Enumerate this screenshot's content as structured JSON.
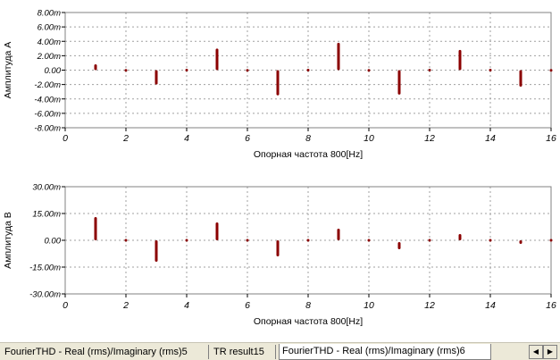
{
  "chart_data": [
    {
      "type": "scatter",
      "ylabel": "Амплитуда A",
      "xlabel": "Опорная частота 800[Hz]",
      "xlim": [
        0,
        16
      ],
      "ylim": [
        -8,
        8
      ],
      "yticks": [
        "8.00m",
        "6.00m",
        "4.00m",
        "2.00m",
        "0.00",
        "-2.00m",
        "-4.00m",
        "-6.00m",
        "-8.00m"
      ],
      "xticks": [
        "0",
        "2",
        "4",
        "6",
        "8",
        "10",
        "12",
        "14",
        "16"
      ],
      "grid": true,
      "series": [
        {
          "color": "#8b0000",
          "bars": [
            {
              "x": 1,
              "low": 0.0,
              "high": 0.8
            },
            {
              "x": 2,
              "low": -0.15,
              "high": 0.1
            },
            {
              "x": 3,
              "low": -2.0,
              "high": 0.0
            },
            {
              "x": 4,
              "low": -0.1,
              "high": 0.1
            },
            {
              "x": 5,
              "low": 0.0,
              "high": 3.0
            },
            {
              "x": 6,
              "low": -0.15,
              "high": 0.1
            },
            {
              "x": 7,
              "low": -3.5,
              "high": 0.0
            },
            {
              "x": 8,
              "low": -0.1,
              "high": 0.1
            },
            {
              "x": 9,
              "low": 0.0,
              "high": 3.8
            },
            {
              "x": 10,
              "low": -0.15,
              "high": 0.1
            },
            {
              "x": 11,
              "low": -3.4,
              "high": 0.0
            },
            {
              "x": 12,
              "low": -0.1,
              "high": 0.1
            },
            {
              "x": 13,
              "low": 0.0,
              "high": 2.8
            },
            {
              "x": 14,
              "low": -0.1,
              "high": 0.1
            },
            {
              "x": 15,
              "low": -2.3,
              "high": 0.0
            },
            {
              "x": 16,
              "low": -0.15,
              "high": 0.1
            }
          ]
        }
      ]
    },
    {
      "type": "scatter",
      "ylabel": "Амплитуда B",
      "xlabel": "Опорная частота 800[Hz]",
      "xlim": [
        0,
        16
      ],
      "ylim": [
        -30,
        30
      ],
      "yticks": [
        "30.00m",
        "15.00m",
        "0.00",
        "-15.00m",
        "-30.00m"
      ],
      "xticks": [
        "0",
        "2",
        "4",
        "6",
        "8",
        "10",
        "12",
        "14",
        "16"
      ],
      "grid": true,
      "series": [
        {
          "color": "#8b0000",
          "bars": [
            {
              "x": 1,
              "low": 0.0,
              "high": 13.0
            },
            {
              "x": 2,
              "low": -0.3,
              "high": 0.3
            },
            {
              "x": 3,
              "low": -12.0,
              "high": 0.0
            },
            {
              "x": 4,
              "low": -0.3,
              "high": 0.3
            },
            {
              "x": 5,
              "low": 0.0,
              "high": 10.0
            },
            {
              "x": 6,
              "low": -0.3,
              "high": 0.3
            },
            {
              "x": 7,
              "low": -9.0,
              "high": 0.0
            },
            {
              "x": 8,
              "low": -0.3,
              "high": 0.3
            },
            {
              "x": 9,
              "low": 0.0,
              "high": 6.5
            },
            {
              "x": 10,
              "low": -0.3,
              "high": 0.3
            },
            {
              "x": 11,
              "low": -5.0,
              "high": -1.0
            },
            {
              "x": 12,
              "low": -0.3,
              "high": 0.3
            },
            {
              "x": 13,
              "low": 0.0,
              "high": 3.5
            },
            {
              "x": 14,
              "low": -0.3,
              "high": 0.3
            },
            {
              "x": 15,
              "low": -2.0,
              "high": 0.0
            },
            {
              "x": 16,
              "low": -0.3,
              "high": 0.3
            }
          ]
        }
      ]
    }
  ],
  "tabs": [
    {
      "label": "FourierTHD - Real (rms)/Imaginary (rms)5",
      "active": false
    },
    {
      "label": "TR result15",
      "active": false
    },
    {
      "label": "FourierTHD - Real (rms)/Imaginary (rms)6",
      "active": true
    }
  ],
  "nav": {
    "prev_icon": "◀",
    "next_icon": "▶"
  },
  "colors": {
    "series": "#8b0000",
    "grid": "#a0a0a0",
    "tabbar": "#ece9d8"
  }
}
